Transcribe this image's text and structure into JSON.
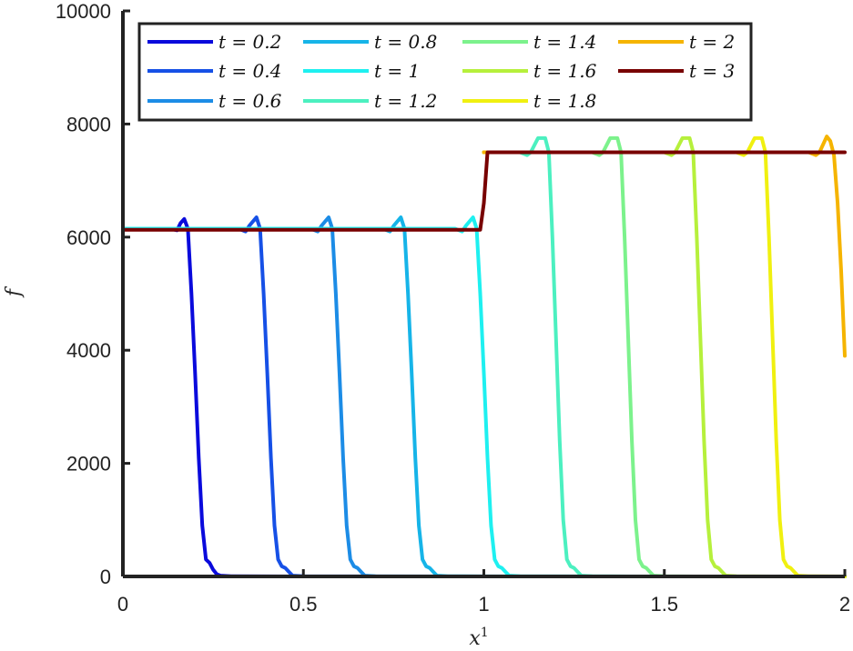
{
  "chart_data": {
    "type": "line",
    "xlabel": "x",
    "xlabel_sup": "1",
    "ylabel": "f",
    "xlim": [
      0,
      2
    ],
    "ylim": [
      0,
      10000
    ],
    "xticks": [
      0,
      0.5,
      1,
      1.5,
      2
    ],
    "xtick_labels": [
      "0",
      "0.5",
      "1",
      "1.5",
      "2"
    ],
    "yticks": [
      0,
      2000,
      4000,
      6000,
      8000,
      10000
    ],
    "ytick_labels": [
      "0",
      "2000",
      "4000",
      "6000",
      "8000",
      "10000"
    ],
    "grid": false,
    "legend_position": "top",
    "series": [
      {
        "name": "t = 0.2",
        "color": "#0a0adc",
        "x": [
          0.0,
          0.13,
          0.15,
          0.16,
          0.17,
          0.18,
          0.19,
          0.2,
          0.21,
          0.22,
          0.23,
          0.24,
          0.25,
          0.26,
          0.27,
          0.3,
          0.4,
          0.5,
          0.7,
          1.0,
          1.3,
          2.0
        ],
        "y": [
          6150,
          6150,
          6120,
          6250,
          6320,
          6150,
          5000,
          3600,
          2100,
          900,
          300,
          240,
          120,
          40,
          15,
          5,
          2,
          0,
          0,
          0,
          0,
          0
        ]
      },
      {
        "name": "t = 0.4",
        "color": "#1650e6",
        "x": [
          0.0,
          0.32,
          0.34,
          0.35,
          0.37,
          0.38,
          0.39,
          0.4,
          0.41,
          0.42,
          0.43,
          0.44,
          0.45,
          0.46,
          0.47,
          0.5,
          0.6,
          0.8,
          1.0,
          1.5,
          2.0
        ],
        "y": [
          6150,
          6150,
          6100,
          6200,
          6350,
          6150,
          5000,
          3600,
          2100,
          900,
          300,
          180,
          150,
          80,
          15,
          5,
          2,
          0,
          0,
          0,
          0
        ]
      },
      {
        "name": "t = 0.6",
        "color": "#1c8ce6",
        "x": [
          0.0,
          0.52,
          0.54,
          0.55,
          0.57,
          0.58,
          0.59,
          0.6,
          0.61,
          0.62,
          0.63,
          0.64,
          0.65,
          0.66,
          0.67,
          0.7,
          0.8,
          1.0,
          1.5,
          2.0
        ],
        "y": [
          6150,
          6150,
          6100,
          6200,
          6350,
          6150,
          5000,
          3600,
          2100,
          900,
          300,
          180,
          150,
          80,
          15,
          5,
          2,
          0,
          0,
          0
        ]
      },
      {
        "name": "t = 0.8",
        "color": "#16b4e8",
        "x": [
          0.0,
          0.72,
          0.74,
          0.75,
          0.77,
          0.78,
          0.79,
          0.8,
          0.81,
          0.82,
          0.83,
          0.84,
          0.85,
          0.86,
          0.87,
          0.9,
          1.0,
          1.5,
          2.0
        ],
        "y": [
          6150,
          6150,
          6100,
          6200,
          6350,
          6150,
          5000,
          3600,
          2100,
          900,
          300,
          180,
          150,
          80,
          15,
          5,
          2,
          0,
          0
        ]
      },
      {
        "name": "t = 1",
        "color": "#1ef0f0",
        "x": [
          0.0,
          0.92,
          0.94,
          0.95,
          0.97,
          0.98,
          0.99,
          1.0,
          1.01,
          1.02,
          1.03,
          1.04,
          1.05,
          1.06,
          1.07,
          1.1,
          1.2,
          1.5,
          2.0
        ],
        "y": [
          6150,
          6150,
          6100,
          6200,
          6350,
          6150,
          5000,
          3600,
          2100,
          900,
          300,
          180,
          150,
          80,
          15,
          5,
          2,
          0,
          0
        ]
      },
      {
        "name": "t = 1.2",
        "color": "#4cf0c0",
        "x": [
          1.0,
          1.1,
          1.12,
          1.13,
          1.15,
          1.17,
          1.18,
          1.19,
          1.2,
          1.21,
          1.22,
          1.23,
          1.24,
          1.25,
          1.26,
          1.27,
          1.3,
          1.4,
          2.0
        ],
        "y": [
          7500,
          7500,
          7450,
          7500,
          7750,
          7750,
          7500,
          6000,
          4200,
          2400,
          1000,
          300,
          180,
          150,
          80,
          15,
          5,
          0,
          0
        ]
      },
      {
        "name": "t = 1.4",
        "color": "#7cf28c",
        "x": [
          1.0,
          1.3,
          1.32,
          1.33,
          1.35,
          1.37,
          1.38,
          1.39,
          1.4,
          1.41,
          1.42,
          1.43,
          1.44,
          1.45,
          1.46,
          1.47,
          1.5,
          1.6,
          2.0
        ],
        "y": [
          7500,
          7500,
          7450,
          7500,
          7750,
          7750,
          7500,
          6000,
          4200,
          2400,
          1000,
          300,
          180,
          150,
          80,
          15,
          5,
          0,
          0
        ]
      },
      {
        "name": "t = 1.6",
        "color": "#b6f03c",
        "x": [
          1.0,
          1.5,
          1.52,
          1.53,
          1.55,
          1.57,
          1.58,
          1.59,
          1.6,
          1.61,
          1.62,
          1.63,
          1.64,
          1.65,
          1.66,
          1.67,
          1.7,
          1.8,
          2.0
        ],
        "y": [
          7500,
          7500,
          7450,
          7500,
          7750,
          7750,
          7500,
          6000,
          4200,
          2400,
          1000,
          300,
          180,
          150,
          80,
          15,
          5,
          0,
          0
        ]
      },
      {
        "name": "t = 1.8",
        "color": "#f0f010",
        "x": [
          1.0,
          1.7,
          1.72,
          1.73,
          1.75,
          1.77,
          1.78,
          1.79,
          1.8,
          1.81,
          1.82,
          1.83,
          1.84,
          1.85,
          1.86,
          1.87,
          1.9,
          2.0
        ],
        "y": [
          7500,
          7500,
          7450,
          7500,
          7750,
          7750,
          7500,
          6000,
          4200,
          2400,
          1000,
          300,
          180,
          150,
          80,
          15,
          5,
          0
        ]
      },
      {
        "name": "t = 2",
        "color": "#f5b400",
        "x": [
          1.0,
          1.9,
          1.92,
          1.93,
          1.95,
          1.96,
          1.97,
          1.98,
          1.99,
          2.0
        ],
        "y": [
          7500,
          7500,
          7450,
          7500,
          7780,
          7700,
          7450,
          6600,
          5400,
          3900
        ]
      },
      {
        "name": "t = 3",
        "color": "#780000",
        "x": [
          0.0,
          0.99,
          1.0,
          1.01,
          2.0
        ],
        "y": [
          6130,
          6130,
          6600,
          7500,
          7500
        ]
      }
    ]
  }
}
